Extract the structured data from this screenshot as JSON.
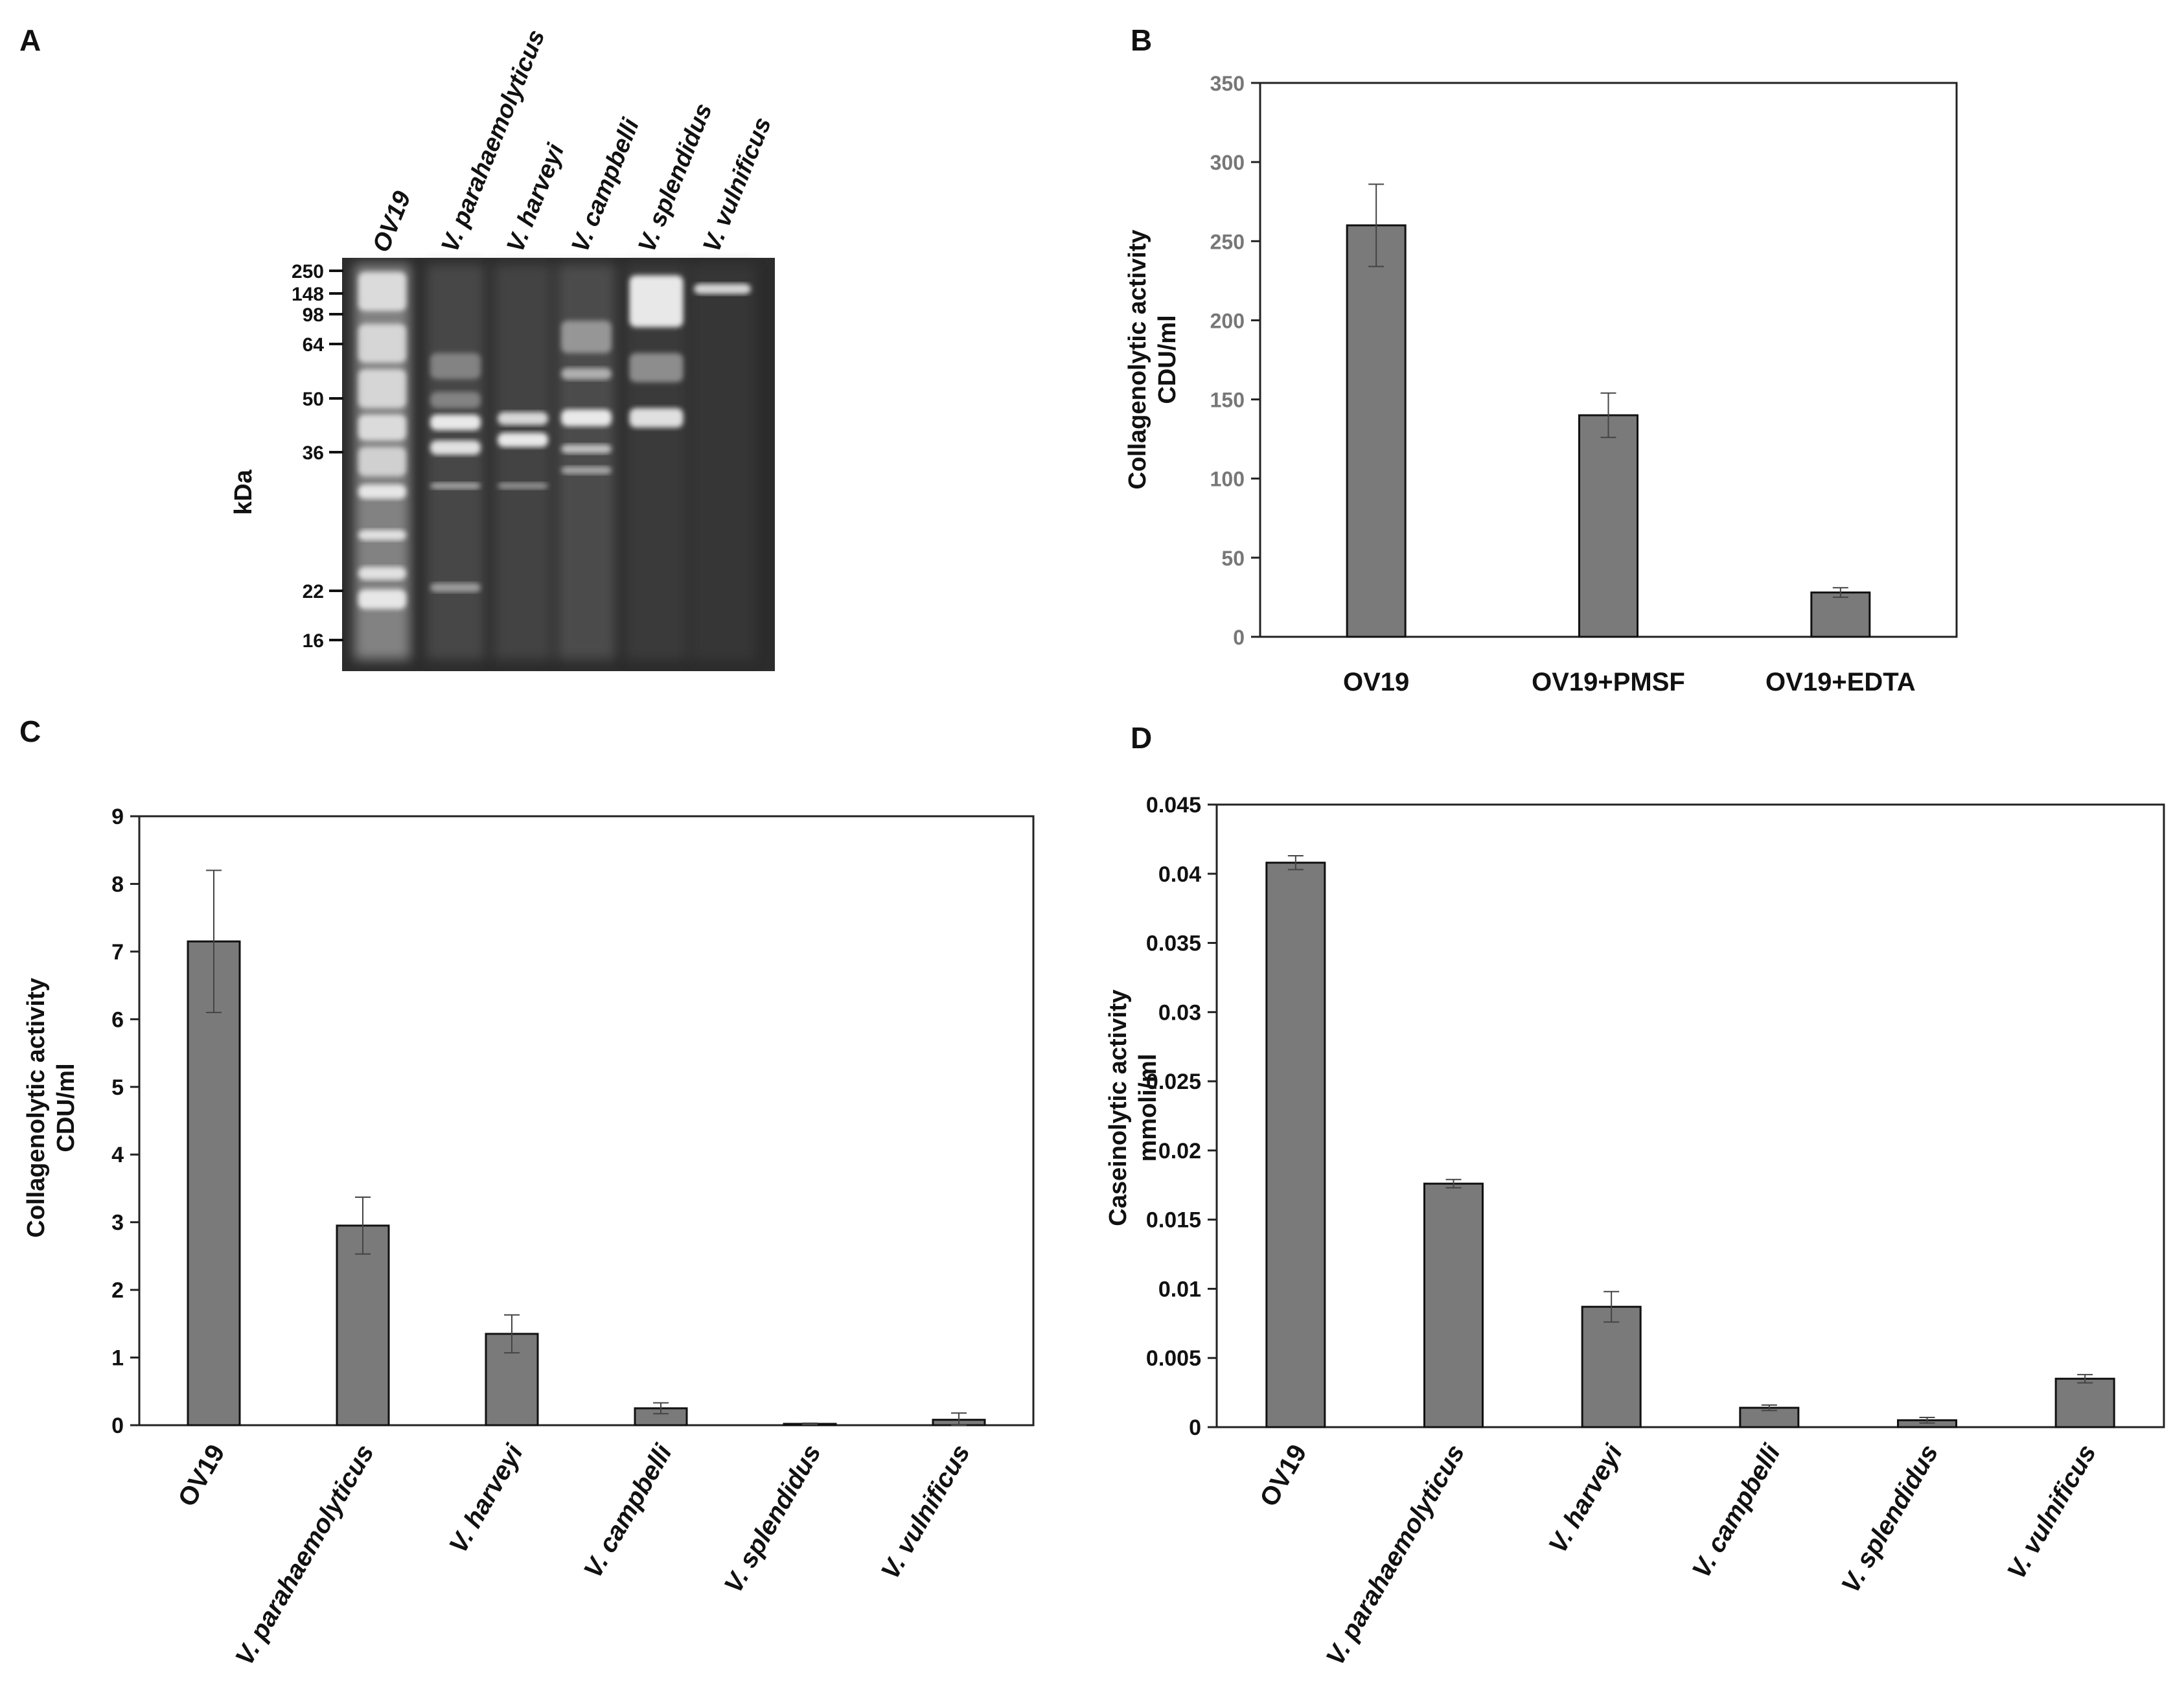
{
  "panels": {
    "a": "A",
    "b": "B",
    "c": "C",
    "d": "D"
  },
  "gel": {
    "ylabel": "kDa",
    "lanes": [
      "OV19",
      "V. parahaemolyticus",
      "V. harveyi",
      "V. campbelli",
      "V. splendidus",
      "V. vulnificus"
    ],
    "markers": [
      "250",
      "148",
      "98",
      "64",
      "50",
      "36",
      "22",
      "16"
    ]
  },
  "chart_data": [
    {
      "id": "B",
      "type": "bar",
      "categories": [
        "OV19",
        "OV19+PMSF",
        "OV19+EDTA"
      ],
      "values": [
        260,
        140,
        28
      ],
      "errors": [
        26,
        14,
        3
      ],
      "ylabel_lines": [
        "Collagenolytic activity",
        "CDU/ml"
      ],
      "ylim": [
        0,
        350
      ],
      "yticks": [
        "0",
        "50",
        "100",
        "150",
        "200",
        "250",
        "300",
        "350"
      ],
      "bar_color": "#7a7a7a",
      "grid": false
    },
    {
      "id": "C",
      "type": "bar",
      "categories": [
        "OV19",
        "V. parahaemolyticus",
        "V. harveyi",
        "V. campbelli",
        "V. splendidus",
        "V. vulnificus"
      ],
      "values": [
        7.15,
        2.95,
        1.35,
        0.25,
        0.02,
        0.08
      ],
      "errors": [
        1.05,
        0.42,
        0.28,
        0.08,
        0.01,
        0.1
      ],
      "ylabel_lines": [
        "Collagenolytic activity",
        "CDU/ml"
      ],
      "ylim": [
        0,
        9
      ],
      "yticks": [
        "0",
        "1",
        "2",
        "3",
        "4",
        "5",
        "6",
        "7",
        "8",
        "9"
      ],
      "bar_color": "#7a7a7a",
      "grid": false
    },
    {
      "id": "D",
      "type": "bar",
      "categories": [
        "OV19",
        "V. parahaemolyticus",
        "V. harveyi",
        "V. campbelli",
        "V. splendidus",
        "V. vulnificus"
      ],
      "values": [
        0.0408,
        0.0176,
        0.0087,
        0.0014,
        0.0005,
        0.0035
      ],
      "errors": [
        0.0005,
        0.0003,
        0.0011,
        0.0002,
        0.0002,
        0.0003
      ],
      "ylabel_lines": [
        "Caseinolytic activity",
        "mmoli/ml"
      ],
      "ylim": [
        0,
        0.045
      ],
      "yticks": [
        "0",
        "0.005",
        "0.01",
        "0.015",
        "0.02",
        "0.025",
        "0.03",
        "0.035",
        "0.04",
        "0.045"
      ],
      "bar_color": "#7a7a7a",
      "grid": false
    }
  ]
}
